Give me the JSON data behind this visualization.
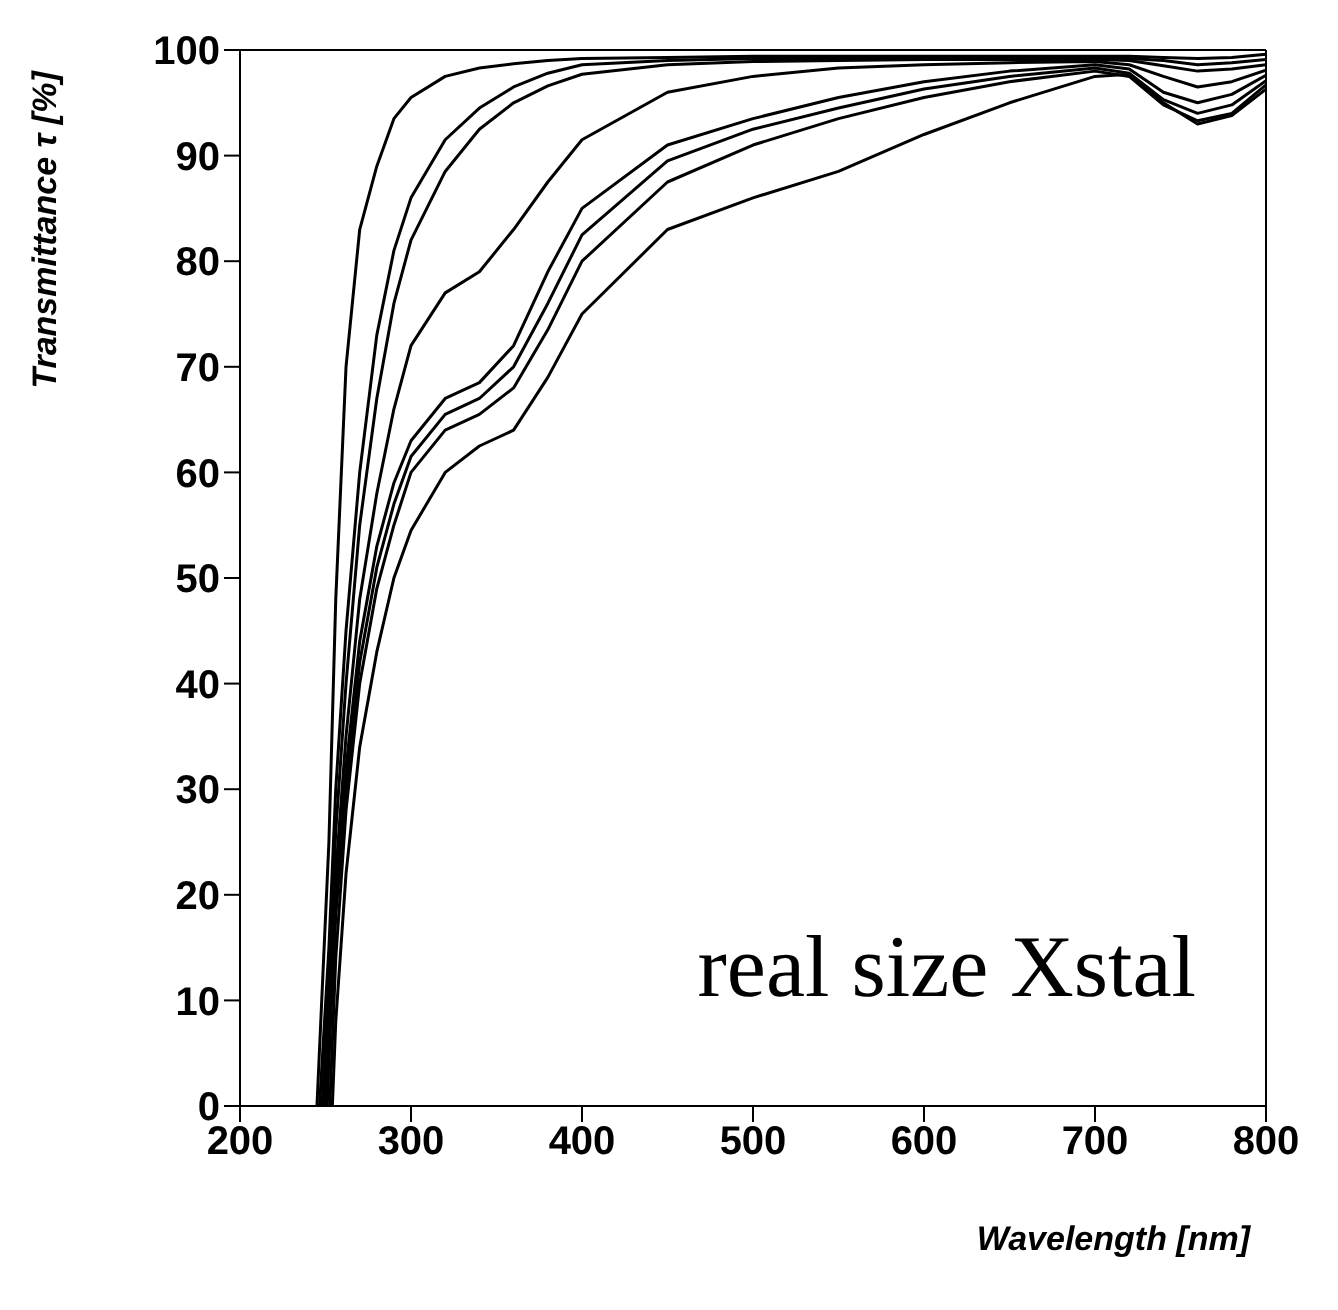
{
  "chart_data": {
    "type": "line",
    "xlabel": "Wavelength [nm]",
    "ylabel": "Transmittance τ [%]",
    "annotations": [
      "real size Xstal"
    ],
    "xlim": [
      200,
      800
    ],
    "xticks": [
      200,
      300,
      400,
      500,
      600,
      700,
      800
    ],
    "ylim": [
      0,
      100
    ],
    "yticks": [
      0,
      10,
      20,
      30,
      40,
      50,
      60,
      70,
      80,
      90,
      100
    ],
    "marker": "none",
    "line_style": "solid",
    "grid": false,
    "series": [
      {
        "color": "#000000",
        "x": [
          245,
          252,
          256,
          262,
          270,
          280,
          290,
          300,
          320,
          340,
          360,
          380,
          400,
          450,
          500,
          550,
          600,
          650,
          700,
          720,
          740,
          760,
          780,
          800
        ],
        "values": [
          0,
          25,
          48,
          70,
          83,
          89,
          93.5,
          95.5,
          97.5,
          98.3,
          98.7,
          99,
          99.2,
          99.3,
          99.4,
          99.4,
          99.4,
          99.4,
          99.4,
          99.4,
          99.3,
          99.2,
          99.3,
          99.6
        ]
      },
      {
        "color": "#000000",
        "x": [
          246.5,
          252,
          256,
          262,
          270,
          280,
          290,
          300,
          320,
          340,
          360,
          380,
          400,
          450,
          500,
          550,
          600,
          650,
          700,
          720,
          740,
          760,
          780,
          800
        ],
        "values": [
          0,
          15,
          30,
          45,
          60,
          73,
          81,
          86,
          91.5,
          94.5,
          96.5,
          97.8,
          98.6,
          99,
          99.2,
          99.2,
          99.2,
          99.2,
          99.2,
          99.2,
          99,
          98.6,
          98.8,
          99.1
        ]
      },
      {
        "color": "#000000",
        "x": [
          248,
          252,
          256,
          262,
          270,
          280,
          290,
          300,
          320,
          340,
          360,
          380,
          400,
          450,
          500,
          550,
          600,
          650,
          700,
          720,
          740,
          760,
          780,
          800
        ],
        "values": [
          0,
          12,
          26,
          40,
          55,
          67,
          76,
          82,
          88.5,
          92.5,
          95,
          96.6,
          97.7,
          98.6,
          98.9,
          99,
          99.1,
          99.1,
          99.1,
          99,
          98.5,
          98,
          98.2,
          98.6
        ]
      },
      {
        "color": "#000000",
        "x": [
          249,
          252,
          256,
          262,
          270,
          280,
          290,
          300,
          320,
          340,
          360,
          380,
          400,
          450,
          500,
          550,
          600,
          650,
          700,
          720,
          740,
          760,
          780,
          800
        ],
        "values": [
          0,
          10,
          22,
          35,
          48,
          58,
          66,
          72,
          77,
          79,
          83,
          87.5,
          91.5,
          96,
          97.5,
          98.3,
          98.6,
          98.8,
          98.9,
          98.6,
          97.5,
          96.5,
          97,
          98.1
        ]
      },
      {
        "color": "#000000",
        "x": [
          250,
          252,
          256,
          262,
          270,
          280,
          290,
          300,
          320,
          340,
          360,
          380,
          400,
          450,
          500,
          550,
          600,
          650,
          700,
          720,
          740,
          760,
          780,
          800
        ],
        "values": [
          0,
          9,
          20,
          32,
          44,
          53,
          59,
          63,
          67,
          68.5,
          72,
          79,
          85,
          91,
          93.5,
          95.5,
          97,
          98,
          98.6,
          98.2,
          96,
          95,
          95.8,
          97.6
        ]
      },
      {
        "color": "#000000",
        "x": [
          251,
          253,
          256,
          262,
          270,
          280,
          290,
          300,
          320,
          340,
          360,
          380,
          400,
          450,
          500,
          550,
          600,
          650,
          700,
          720,
          740,
          760,
          780,
          800
        ],
        "values": [
          0,
          8,
          18,
          30,
          42,
          51,
          57,
          61.5,
          65.5,
          67,
          70,
          76,
          82.5,
          89.5,
          92.5,
          94.5,
          96.3,
          97.5,
          98.3,
          97.8,
          95.3,
          94,
          94.8,
          97.1
        ]
      },
      {
        "color": "#000000",
        "x": [
          252.5,
          256,
          262,
          270,
          280,
          290,
          300,
          320,
          340,
          360,
          380,
          400,
          450,
          500,
          550,
          600,
          650,
          700,
          720,
          740,
          760,
          780,
          800
        ],
        "values": [
          0,
          14,
          28,
          40,
          49,
          55,
          60,
          64,
          65.5,
          68,
          73.5,
          80,
          87.5,
          91,
          93.5,
          95.5,
          97,
          98,
          97.5,
          94.8,
          93.3,
          94,
          96.7
        ]
      },
      {
        "color": "#000000",
        "x": [
          254,
          256,
          262,
          270,
          280,
          290,
          300,
          320,
          340,
          360,
          380,
          400,
          450,
          500,
          550,
          600,
          650,
          700,
          720,
          740,
          760,
          780,
          800
        ],
        "values": [
          0,
          8,
          22,
          34,
          43,
          50,
          54.5,
          60,
          62.5,
          64,
          69,
          75,
          83,
          86,
          88.5,
          92,
          95,
          97.5,
          97.7,
          95,
          93,
          93.8,
          96.3
        ]
      }
    ]
  }
}
